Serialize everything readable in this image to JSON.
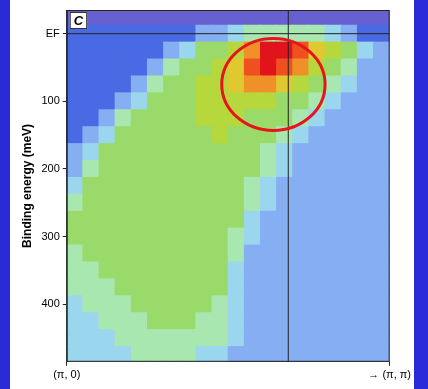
{
  "chart_data": {
    "type": "heatmap",
    "panel": "C",
    "y_label": "Binding energy (meV)",
    "x": [
      0.025,
      0.075,
      0.125,
      0.175,
      0.225,
      0.275,
      0.325,
      0.375,
      0.425,
      0.475,
      0.525,
      0.575,
      0.625,
      0.675,
      0.725,
      0.775,
      0.825,
      0.875,
      0.925,
      0.975
    ],
    "y": [
      -25,
      0,
      25,
      50,
      75,
      100,
      125,
      150,
      175,
      200,
      225,
      250,
      275,
      300,
      325,
      350,
      375,
      400,
      425,
      450,
      475
    ],
    "cells": [
      [
        0,
        0,
        0,
        0,
        0,
        0,
        0,
        0,
        0,
        0,
        0,
        0,
        0,
        0,
        0,
        0,
        0,
        0,
        0,
        0
      ],
      [
        1,
        1,
        1,
        1,
        1,
        1,
        1,
        1,
        2,
        2,
        3,
        4,
        4,
        4,
        4,
        4,
        3,
        2,
        1,
        1
      ],
      [
        1,
        1,
        1,
        1,
        1,
        1,
        2,
        3,
        5,
        5,
        6,
        8,
        10,
        10,
        9,
        7,
        6,
        5,
        3,
        2
      ],
      [
        1,
        1,
        1,
        1,
        1,
        2,
        4,
        5,
        5,
        6,
        7,
        9,
        10,
        9,
        8,
        6,
        5,
        4,
        2,
        2
      ],
      [
        1,
        1,
        1,
        1,
        2,
        4,
        5,
        5,
        6,
        6,
        7,
        8,
        8,
        7,
        6,
        5,
        4,
        3,
        2,
        2
      ],
      [
        1,
        1,
        1,
        2,
        3,
        5,
        5,
        5,
        6,
        6,
        6,
        6,
        6,
        5,
        5,
        4,
        3,
        2,
        2,
        2
      ],
      [
        1,
        1,
        2,
        4,
        5,
        5,
        5,
        5,
        6,
        6,
        6,
        5,
        5,
        5,
        4,
        3,
        2,
        2,
        2,
        2
      ],
      [
        1,
        2,
        3,
        5,
        5,
        5,
        5,
        5,
        5,
        6,
        5,
        5,
        5,
        4,
        3,
        2,
        2,
        2,
        2,
        2
      ],
      [
        2,
        3,
        5,
        5,
        5,
        5,
        5,
        5,
        5,
        5,
        5,
        5,
        4,
        3,
        2,
        2,
        2,
        2,
        2,
        2
      ],
      [
        2,
        4,
        5,
        5,
        5,
        5,
        5,
        5,
        5,
        5,
        5,
        5,
        4,
        3,
        2,
        2,
        2,
        2,
        2,
        2
      ],
      [
        3,
        5,
        5,
        5,
        5,
        5,
        5,
        5,
        5,
        5,
        5,
        4,
        3,
        2,
        2,
        2,
        2,
        2,
        2,
        2
      ],
      [
        4,
        5,
        5,
        5,
        5,
        5,
        5,
        5,
        5,
        5,
        5,
        4,
        3,
        2,
        2,
        2,
        2,
        2,
        2,
        2
      ],
      [
        5,
        5,
        5,
        5,
        5,
        5,
        5,
        5,
        5,
        5,
        5,
        3,
        2,
        2,
        2,
        2,
        2,
        2,
        2,
        2
      ],
      [
        5,
        5,
        5,
        5,
        5,
        5,
        5,
        5,
        5,
        5,
        4,
        3,
        2,
        2,
        2,
        2,
        2,
        2,
        2,
        2
      ],
      [
        4,
        5,
        5,
        5,
        5,
        5,
        5,
        5,
        5,
        5,
        4,
        2,
        2,
        2,
        2,
        2,
        2,
        2,
        2,
        2
      ],
      [
        4,
        4,
        5,
        5,
        5,
        5,
        5,
        5,
        5,
        5,
        3,
        2,
        2,
        2,
        2,
        2,
        2,
        2,
        2,
        2
      ],
      [
        4,
        4,
        4,
        5,
        5,
        5,
        5,
        5,
        5,
        5,
        3,
        2,
        2,
        2,
        2,
        2,
        2,
        2,
        2,
        2
      ],
      [
        3,
        4,
        4,
        4,
        5,
        5,
        5,
        5,
        5,
        4,
        3,
        2,
        2,
        2,
        2,
        2,
        2,
        2,
        2,
        2
      ],
      [
        3,
        3,
        4,
        4,
        4,
        5,
        5,
        5,
        4,
        4,
        3,
        2,
        2,
        2,
        2,
        2,
        2,
        2,
        2,
        2
      ],
      [
        3,
        3,
        3,
        4,
        4,
        4,
        4,
        4,
        4,
        4,
        3,
        2,
        2,
        2,
        2,
        2,
        2,
        2,
        2,
        2
      ],
      [
        3,
        3,
        3,
        3,
        4,
        4,
        4,
        4,
        3,
        3,
        2,
        2,
        2,
        2,
        2,
        2,
        2,
        2,
        2,
        2
      ]
    ],
    "xlim": [
      0,
      1
    ],
    "ylim": [
      -35,
      485
    ],
    "xticks": [
      {
        "value": 0,
        "label": "(π, 0)"
      },
      {
        "value": 1,
        "label": "→ (π, π)"
      }
    ],
    "yticks": [
      {
        "value": 0,
        "label": "EF"
      },
      100,
      200,
      300,
      400
    ],
    "grid": false,
    "reference_lines": [
      {
        "axis": "x",
        "value": 0.686
      },
      {
        "axis": "y",
        "value": 0
      }
    ],
    "circle": {
      "x": 0.64,
      "y": 75,
      "rx": 0.16,
      "ry": 68,
      "color": "#e8141b"
    }
  }
}
